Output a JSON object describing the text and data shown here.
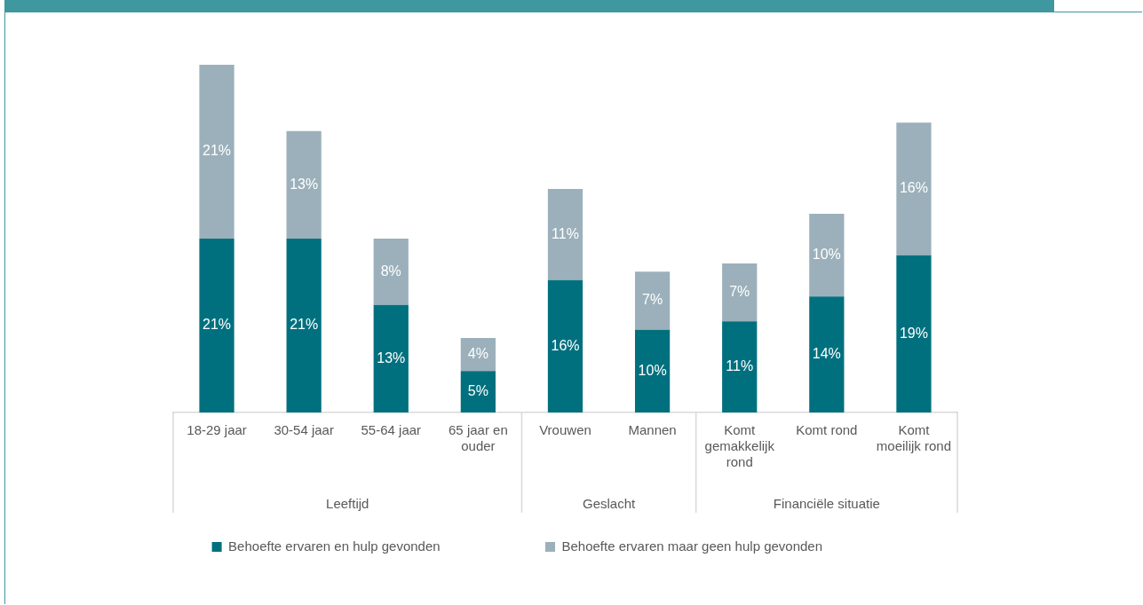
{
  "chart_data": {
    "type": "bar",
    "stacked": true,
    "legend": "bottom",
    "data_labels": true,
    "grid": false,
    "ylim": [
      0,
      42
    ],
    "categories": [
      "18-29 jaar",
      "30-54 jaar",
      "55-64 jaar",
      "65 jaar en ouder",
      "Vrouwen",
      "Mannen",
      "Komt gemakkelijk rond",
      "Komt rond",
      "Komt moeilijk rond"
    ],
    "series": [
      {
        "name": "Behoefte ervaren en hulp gevonden",
        "color": "#00707f",
        "values": [
          21,
          21,
          13,
          5,
          16,
          10,
          11,
          14,
          19
        ],
        "value_labels": [
          "21%",
          "21%",
          "13%",
          "5%",
          "16%",
          "10%",
          "11%",
          "14%",
          "19%"
        ]
      },
      {
        "name": "Behoefte ervaren maar geen hulp gevonden",
        "color": "#9bb0ba",
        "values": [
          21,
          13,
          8,
          4,
          11,
          7,
          7,
          10,
          16
        ],
        "value_labels": [
          "21%",
          "13%",
          "8%",
          "4%",
          "11%",
          "7%",
          "7%",
          "10%",
          "16%"
        ]
      }
    ],
    "annotations": [
      "Leeftijd",
      "Geslacht",
      "Financiële situatie"
    ]
  }
}
